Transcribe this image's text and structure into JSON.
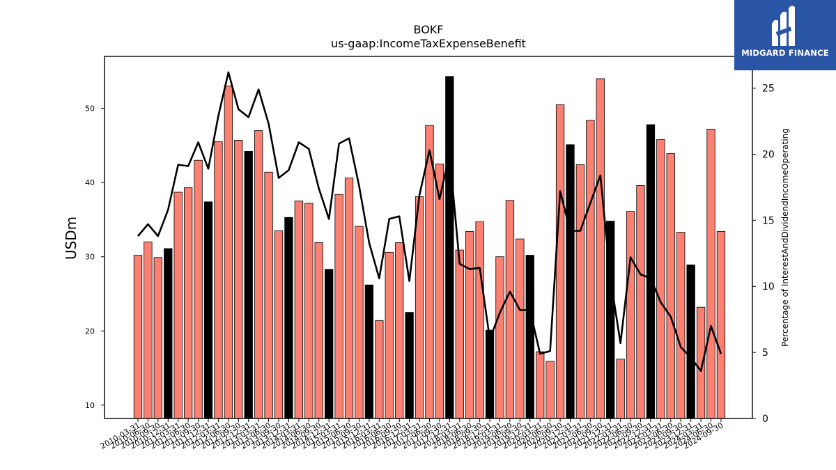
{
  "logo": {
    "text": "MIDGARD FINANCE",
    "bg": "#2a55a6"
  },
  "chart_data": {
    "type": "bar",
    "title": "BOKF",
    "subtitle": "us-gaap:IncomeTaxExpenseBenefit",
    "ylabel": "USDm",
    "ylabel2": "Percentage of InterestAndDividendIncomeOperating",
    "ylim": [
      8.2,
      57.0
    ],
    "y2lim": [
      0,
      27.4
    ],
    "yticks": [
      10,
      20,
      30,
      40,
      50
    ],
    "y2ticks": [
      0,
      5,
      10,
      15,
      20,
      25
    ],
    "colors": {
      "bar": "#fa8072",
      "bar_q4": "#000000",
      "line": "#000000"
    },
    "categories": [
      "2010-03-31",
      "2010-06-30",
      "2010-09-30",
      "2010-12-31",
      "2011-03-31",
      "2011-06-30",
      "2011-09-30",
      "2011-12-31",
      "2012-03-31",
      "2012-06-30",
      "2012-09-30",
      "2012-12-31",
      "2013-03-31",
      "2013-06-30",
      "2013-09-30",
      "2013-12-31",
      "2014-03-31",
      "2014-06-30",
      "2014-09-30",
      "2014-12-31",
      "2015-03-31",
      "2015-06-30",
      "2015-09-30",
      "2015-12-31",
      "2016-03-31",
      "2016-06-30",
      "2016-09-30",
      "2016-12-31",
      "2017-03-31",
      "2017-06-30",
      "2017-09-30",
      "2017-12-31",
      "2018-03-31",
      "2018-06-30",
      "2018-09-30",
      "2018-12-31",
      "2019-03-31",
      "2019-06-30",
      "2019-09-30",
      "2019-12-31",
      "2020-03-31",
      "2020-06-30",
      "2020-09-30",
      "2020-12-31",
      "2021-03-31",
      "2021-06-30",
      "2021-09-30",
      "2021-12-31",
      "2022-03-31",
      "2022-06-30",
      "2022-09-30",
      "2022-12-31",
      "2023-03-31",
      "2023-06-30",
      "2023-09-30",
      "2023-12-31",
      "2024-03-31",
      "2024-06-30",
      "2024-09-30"
    ],
    "series": [
      {
        "type": "bar",
        "values": [
          30.2,
          32.0,
          29.9,
          31.1,
          38.7,
          39.3,
          43.0,
          37.4,
          45.5,
          53.0,
          45.7,
          44.2,
          47.0,
          41.4,
          33.5,
          35.3,
          37.5,
          37.2,
          31.9,
          28.3,
          38.4,
          40.6,
          34.1,
          26.2,
          21.4,
          30.6,
          31.9,
          22.5,
          38.1,
          47.7,
          42.5,
          54.3,
          30.9,
          33.4,
          34.7,
          20.1,
          30.0,
          37.6,
          32.4,
          30.2,
          17.2,
          15.9,
          50.5,
          45.1,
          42.4,
          48.4,
          54.0,
          34.8,
          16.2,
          36.1,
          39.6,
          47.8,
          45.8,
          43.9,
          33.3,
          28.9,
          23.2,
          47.2,
          33.4
        ]
      },
      {
        "type": "line",
        "axis": "right",
        "values": [
          13.8,
          14.7,
          13.8,
          15.8,
          19.2,
          19.1,
          20.9,
          18.9,
          22.9,
          26.2,
          23.4,
          22.8,
          24.9,
          22.3,
          18.2,
          18.8,
          20.9,
          20.4,
          17.4,
          15.1,
          20.8,
          21.2,
          17.6,
          13.3,
          10.6,
          15.1,
          15.3,
          10.4,
          16.9,
          20.3,
          16.6,
          20.0,
          11.7,
          11.3,
          11.4,
          6.0,
          8.0,
          9.6,
          8.2,
          8.2,
          4.9,
          5.1,
          17.2,
          14.2,
          14.2,
          16.3,
          18.4,
          10.6,
          5.7,
          12.2,
          10.9,
          10.6,
          8.8,
          7.7,
          5.4,
          4.6,
          3.6,
          7.0,
          4.9
        ]
      }
    ]
  }
}
